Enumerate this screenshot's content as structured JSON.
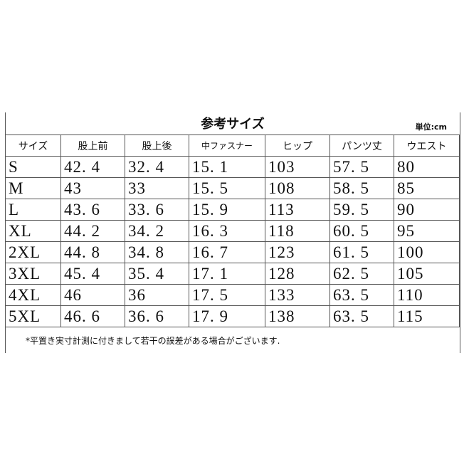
{
  "title": "参考サイズ",
  "unit": "単位:cm",
  "columns": [
    "サイズ",
    "股上前",
    "股上後",
    "中ファスナー",
    "ヒップ",
    "パンツ丈",
    "ウエスト"
  ],
  "rows": [
    [
      "S",
      "42. 4",
      "32. 4",
      "15. 1",
      "103",
      "57. 5",
      "80"
    ],
    [
      "M",
      "43",
      "33",
      "15. 5",
      "108",
      "58. 5",
      "85"
    ],
    [
      "L",
      "43. 6",
      "33. 6",
      "15. 9",
      "113",
      "59. 5",
      "90"
    ],
    [
      "XL",
      "44. 2",
      "34. 2",
      "16. 3",
      "118",
      "60. 5",
      "95"
    ],
    [
      "2XL",
      "44. 8",
      "34. 8",
      "16. 7",
      "123",
      "61. 5",
      "100"
    ],
    [
      "3XL",
      "45. 4",
      "35. 4",
      "17. 1",
      "128",
      "62. 5",
      "105"
    ],
    [
      "4XL",
      "46",
      "36",
      "17. 5",
      "133",
      "63. 5",
      "110"
    ],
    [
      "5XL",
      "46. 6",
      "36. 6",
      "17. 9",
      "138",
      "63. 5",
      "115"
    ]
  ],
  "note": "*平置き実寸計測に付きまして若干の誤差がある場合がございます."
}
